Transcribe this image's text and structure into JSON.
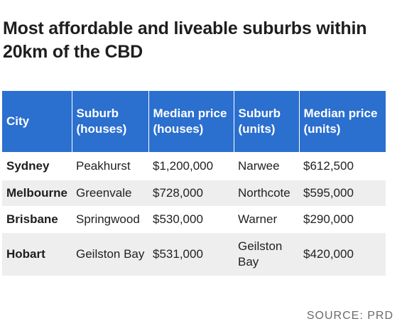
{
  "title": "Most affordable and liveable suburbs within 20km of the CBD",
  "colors": {
    "header_bg": "#2b6fcf",
    "row_alt": "#eeeeee"
  },
  "table": {
    "headers": [
      "City",
      "Suburb (houses)",
      "Median price (houses)",
      "Suburb (units)",
      "Median price (units)"
    ],
    "rows": [
      [
        "Sydney",
        "Peakhurst",
        "$1,200,000",
        "Narwee",
        "$612,500"
      ],
      [
        "Melbourne",
        "Greenvale",
        "$728,000",
        "Northcote",
        "$595,000"
      ],
      [
        "Brisbane",
        "Springwood",
        "$530,000",
        "Warner",
        "$290,000"
      ],
      [
        "Hobart",
        "Geilston Bay",
        "$531,000",
        "Geilston Bay",
        "$420,000"
      ]
    ]
  },
  "source": "SOURCE: PRD"
}
